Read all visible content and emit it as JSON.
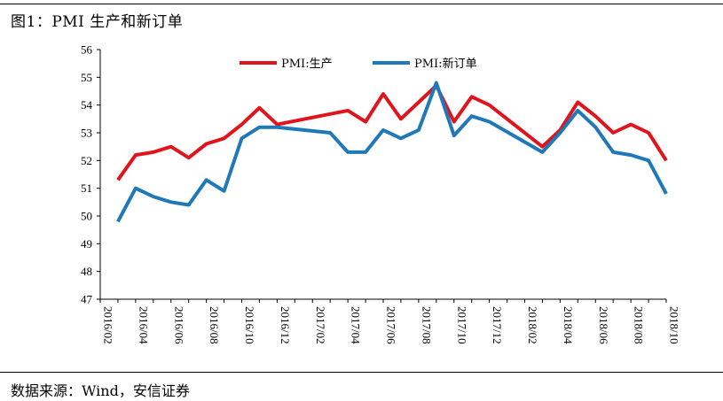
{
  "figure": {
    "title": "图1：PMI 生产和新订单",
    "source": "数据来源：Wind，安信证券"
  },
  "colors": {
    "production": "#e1141b",
    "new_orders": "#1f78b8"
  },
  "chart_data": {
    "type": "line",
    "title": "",
    "xlabel": "",
    "ylabel": "",
    "ylim": [
      47,
      56
    ],
    "yticks": [
      47,
      48,
      49,
      50,
      51,
      52,
      53,
      54,
      55,
      56
    ],
    "grid": false,
    "legend_position": "top-center",
    "x_tick_labels": [
      "2016/02",
      "2016/04",
      "2016/06",
      "2016/08",
      "2016/10",
      "2016/12",
      "2017/02",
      "2017/04",
      "2017/06",
      "2017/08",
      "2017/10",
      "2017/12",
      "2018/02",
      "2018/04",
      "2018/06",
      "2018/08",
      "2018/10"
    ],
    "x": [
      "2016/02",
      "2016/03",
      "2016/04",
      "2016/05",
      "2016/06",
      "2016/07",
      "2016/08",
      "2016/09",
      "2016/10",
      "2016/11",
      "2016/12",
      "2017/01",
      "2017/02",
      "2017/03",
      "2017/04",
      "2017/05",
      "2017/06",
      "2017/07",
      "2017/08",
      "2017/09",
      "2017/10",
      "2017/11",
      "2017/12",
      "2018/01",
      "2018/02",
      "2018/03",
      "2018/04",
      "2018/05",
      "2018/06",
      "2018/07",
      "2018/08",
      "2018/09",
      "2018/10"
    ],
    "series": [
      {
        "name": "PMI:生产",
        "color": "#e1141b",
        "values": [
          null,
          51.3,
          52.2,
          52.3,
          52.5,
          52.1,
          52.6,
          52.8,
          53.3,
          53.9,
          53.3,
          null,
          null,
          null,
          53.8,
          53.4,
          54.4,
          53.5,
          54.1,
          54.7,
          53.4,
          54.3,
          54.0,
          null,
          null,
          52.5,
          53.1,
          54.1,
          53.6,
          53.0,
          53.3,
          53.0,
          52.0
        ]
      },
      {
        "name": "PMI:新订单",
        "color": "#1f78b8",
        "values": [
          null,
          49.8,
          51.0,
          50.7,
          50.5,
          50.4,
          51.3,
          50.9,
          52.8,
          53.2,
          53.2,
          null,
          null,
          53.0,
          52.3,
          52.3,
          53.1,
          52.8,
          53.1,
          54.8,
          52.9,
          53.6,
          53.4,
          null,
          null,
          52.3,
          53.0,
          53.8,
          53.2,
          52.3,
          52.2,
          52.0,
          50.8
        ]
      }
    ]
  }
}
